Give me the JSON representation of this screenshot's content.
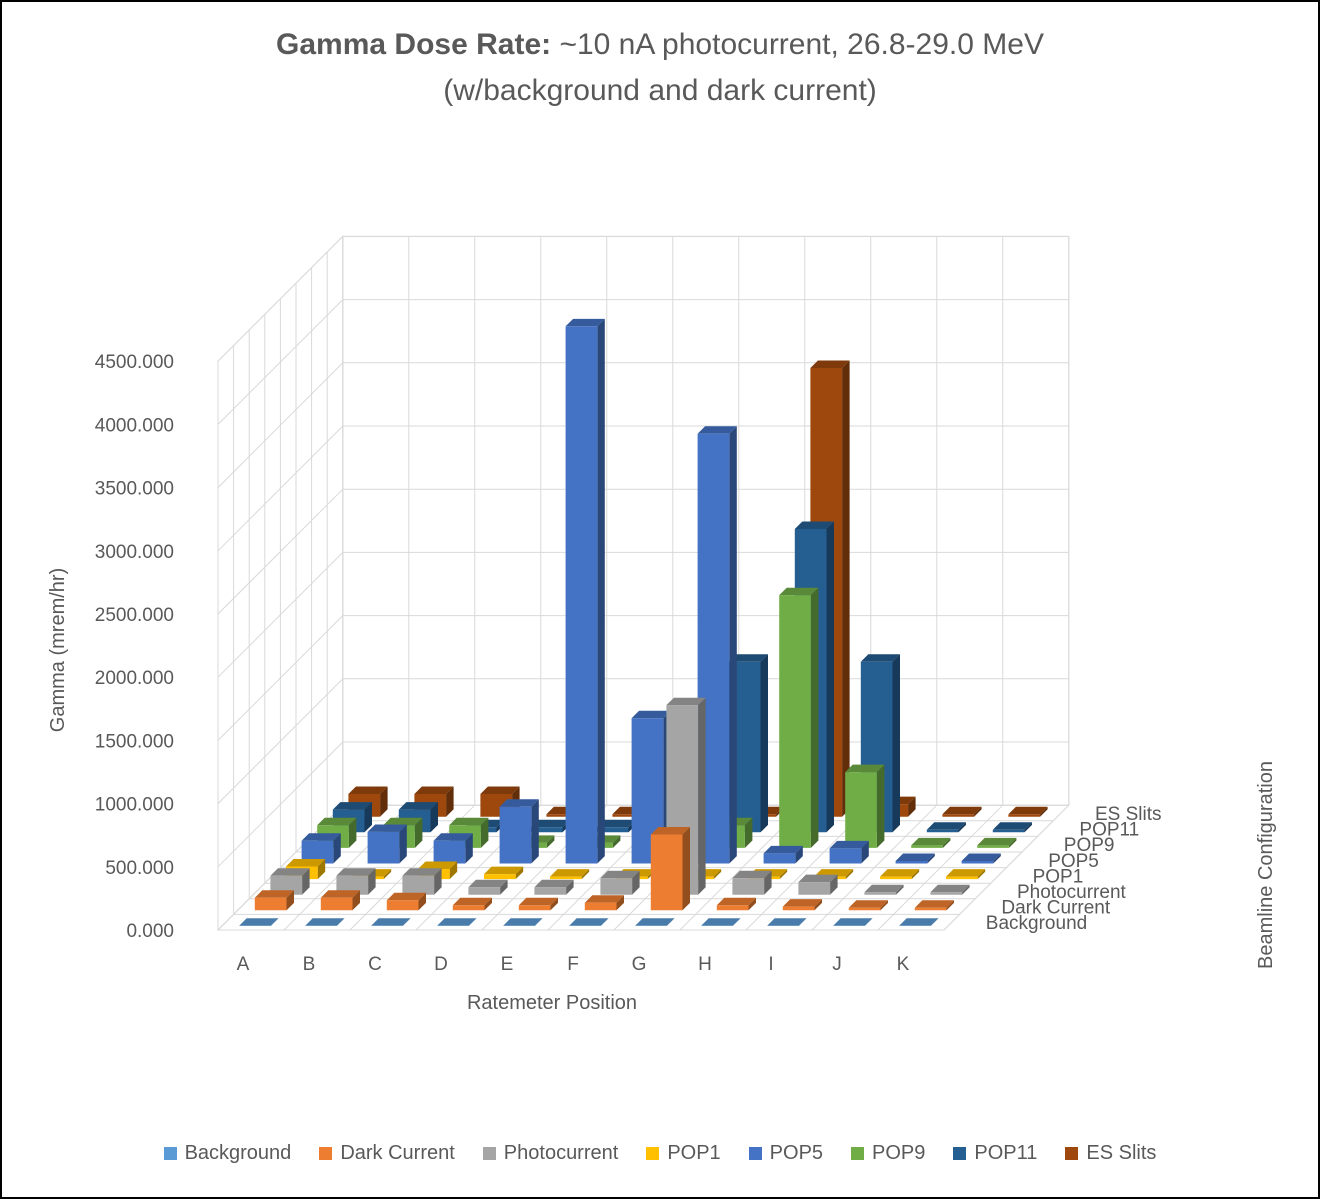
{
  "chart_data": {
    "type": "bar",
    "subtype": "3d-column",
    "title_bold": "Gamma Dose Rate:",
    "title_rest": " ~10 nA photocurrent, 26.8-29.0 MeV",
    "subtitle": "(w/background and dark current)",
    "xlabel": "Ratemeter Position",
    "ylabel": "Gamma (mrem/hr)",
    "zlabel": "Beamline Configuration",
    "ylim": [
      0,
      4500
    ],
    "yticks": [
      "0.000",
      "500.000",
      "1000.000",
      "1500.000",
      "2000.000",
      "2500.000",
      "3000.000",
      "3500.000",
      "4000.000",
      "4500.000"
    ],
    "categories": [
      "A",
      "B",
      "C",
      "D",
      "E",
      "F",
      "G",
      "H",
      "I",
      "J",
      "K"
    ],
    "series": [
      {
        "name": "Background",
        "color": "#5B9BD5",
        "values": [
          2,
          2,
          2,
          2,
          2,
          2,
          2,
          2,
          2,
          2,
          2
        ]
      },
      {
        "name": "Dark Current",
        "color": "#ED7D31",
        "values": [
          100,
          100,
          80,
          40,
          40,
          60,
          600,
          40,
          30,
          20,
          20
        ]
      },
      {
        "name": "Photocurrent",
        "color": "#A5A5A5",
        "values": [
          150,
          150,
          150,
          60,
          60,
          130,
          1500,
          130,
          100,
          20,
          20
        ]
      },
      {
        "name": "POP1",
        "color": "#FFC000",
        "values": [
          100,
          20,
          80,
          40,
          20,
          20,
          20,
          20,
          20,
          20,
          20
        ]
      },
      {
        "name": "POP5",
        "color": "#4472C4",
        "values": [
          180,
          250,
          180,
          450,
          4250,
          1150,
          3400,
          80,
          120,
          20,
          20
        ]
      },
      {
        "name": "POP9",
        "color": "#70AD47",
        "values": [
          180,
          180,
          180,
          40,
          40,
          20,
          180,
          2000,
          600,
          20,
          20
        ]
      },
      {
        "name": "POP11",
        "color": "#255E91",
        "values": [
          180,
          180,
          40,
          40,
          40,
          40,
          1350,
          2400,
          1350,
          20,
          20
        ]
      },
      {
        "name": "ES Slits",
        "color": "#9E480E",
        "values": [
          180,
          180,
          180,
          20,
          20,
          20,
          20,
          3550,
          100,
          20,
          20
        ]
      }
    ],
    "grid": true,
    "legend_position": "bottom"
  }
}
